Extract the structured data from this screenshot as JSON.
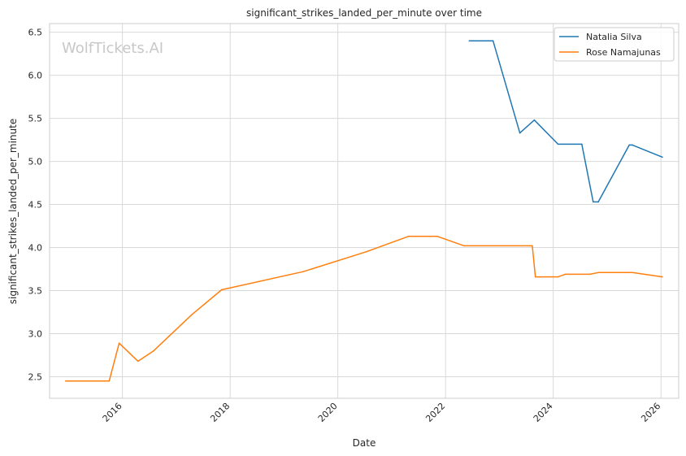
{
  "watermark": "WolfTickets.AI",
  "chart_data": {
    "type": "line",
    "title": "significant_strikes_landed_per_minute over time",
    "xlabel": "Date",
    "ylabel": "significant_strikes_landed_per_minute",
    "x_type": "date",
    "xlim": [
      "2014-08-25",
      "2026-05-01"
    ],
    "ylim": [
      2.25,
      6.6
    ],
    "xticks": [
      "2016",
      "2018",
      "2020",
      "2022",
      "2024",
      "2026"
    ],
    "yticks": [
      "2.5",
      "3.0",
      "3.5",
      "4.0",
      "4.5",
      "5.0",
      "5.5",
      "6.0",
      "6.5"
    ],
    "grid": true,
    "legend_position": "top-right",
    "series": [
      {
        "name": "Natalia Silva",
        "color": "#1f77b4",
        "points": [
          [
            "2022-06-11",
            6.4
          ],
          [
            "2022-11-19",
            6.4
          ],
          [
            "2023-05-20",
            5.33
          ],
          [
            "2023-08-26",
            5.48
          ],
          [
            "2024-02-03",
            5.2
          ],
          [
            "2024-07-13",
            5.2
          ],
          [
            "2024-09-28",
            4.53
          ],
          [
            "2024-11-02",
            4.53
          ],
          [
            "2025-05-31",
            5.19
          ],
          [
            "2025-06-21",
            5.19
          ],
          [
            "2026-01-10",
            5.05
          ]
        ]
      },
      {
        "name": "Rose Namajunas",
        "color": "#ff7f0e",
        "points": [
          [
            "2014-12-12",
            2.45
          ],
          [
            "2015-10-03",
            2.45
          ],
          [
            "2015-12-10",
            2.89
          ],
          [
            "2016-04-16",
            2.68
          ],
          [
            "2016-07-30",
            2.8
          ],
          [
            "2017-04-15",
            3.22
          ],
          [
            "2017-11-04",
            3.51
          ],
          [
            "2019-05-11",
            3.72
          ],
          [
            "2020-07-11",
            3.95
          ],
          [
            "2021-04-24",
            4.13
          ],
          [
            "2021-11-06",
            4.13
          ],
          [
            "2022-05-07",
            4.02
          ],
          [
            "2023-08-12",
            4.02
          ],
          [
            "2023-09-02",
            3.66
          ],
          [
            "2024-02-03",
            3.66
          ],
          [
            "2024-03-23",
            3.69
          ],
          [
            "2024-09-07",
            3.69
          ],
          [
            "2024-11-02",
            3.71
          ],
          [
            "2025-05-31",
            3.71
          ],
          [
            "2025-06-21",
            3.71
          ],
          [
            "2026-01-10",
            3.66
          ]
        ]
      }
    ]
  }
}
